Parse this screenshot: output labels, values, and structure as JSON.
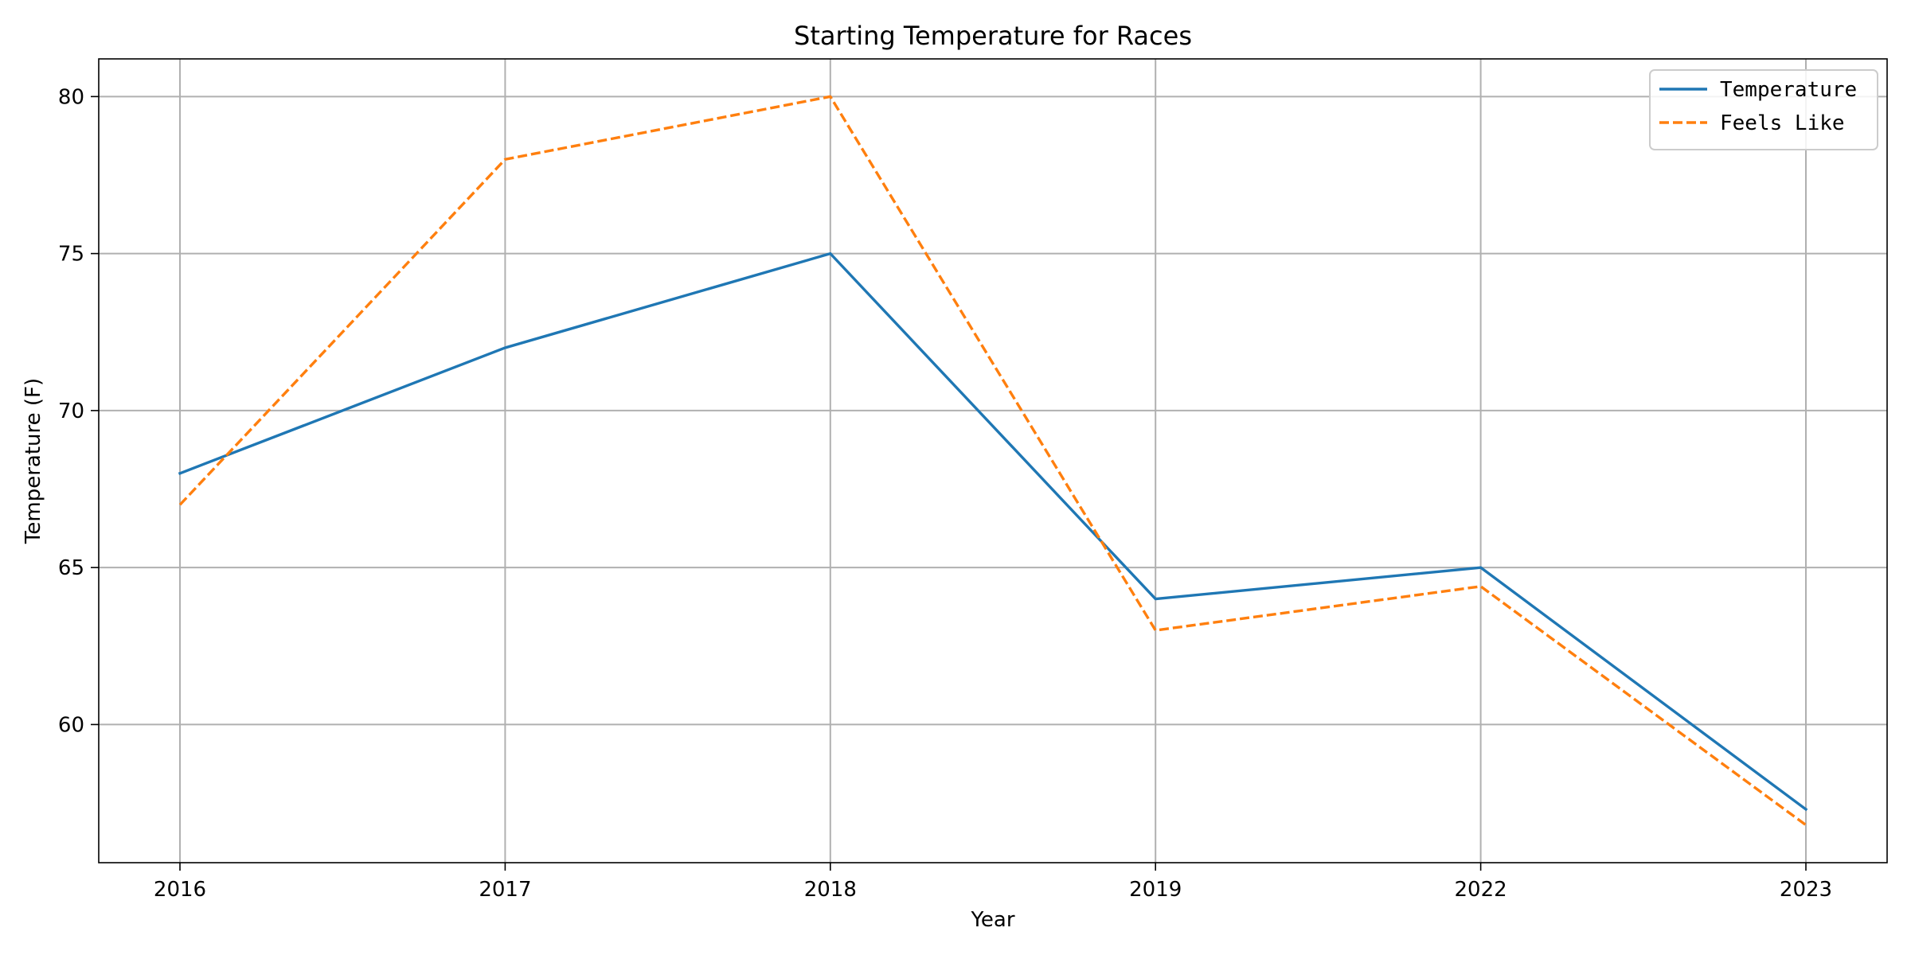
{
  "chart_data": {
    "type": "line",
    "title": "Starting Temperature for Races",
    "xlabel": "Year",
    "ylabel": "Temperature (F)",
    "categories": [
      "2016",
      "2017",
      "2018",
      "2019",
      "2022",
      "2023"
    ],
    "yticks": [
      "60",
      "65",
      "70",
      "75",
      "80"
    ],
    "ylim": [
      55.6,
      81.2
    ],
    "grid": true,
    "legend_position": "top-right",
    "series": [
      {
        "name": "Temperature",
        "values": [
          68,
          72,
          75,
          64,
          65,
          57.3
        ],
        "color": "#1f77b4",
        "linestyle": "solid"
      },
      {
        "name": "Feels Like",
        "values": [
          67,
          78,
          80,
          63,
          64.4,
          56.8
        ],
        "color": "#ff7f0e",
        "linestyle": "dashed"
      }
    ]
  }
}
